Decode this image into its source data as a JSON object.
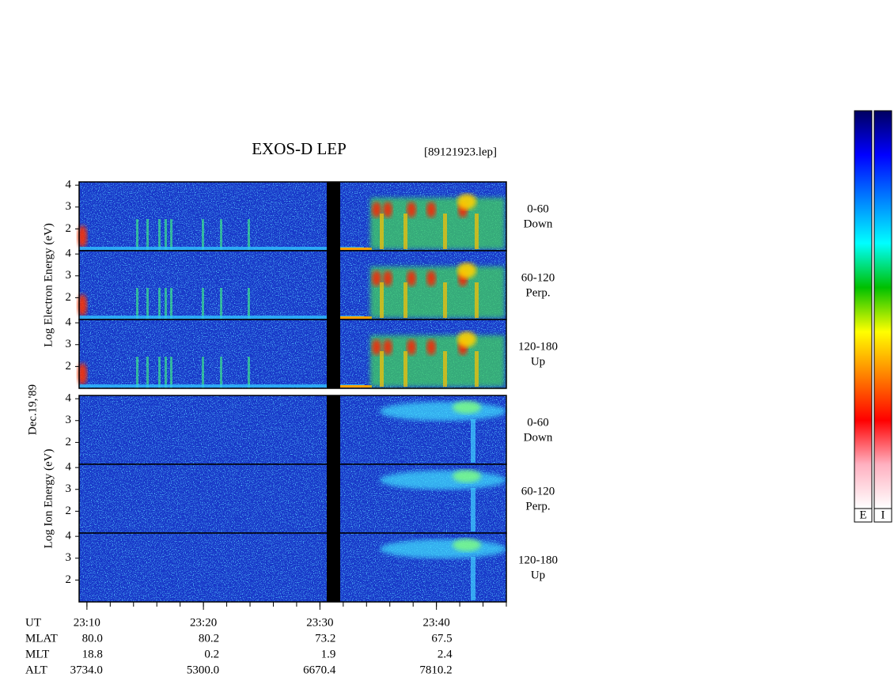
{
  "chart_data": {
    "type": "spectrogram",
    "title": "EXOS-D LEP",
    "file": "[89121923.lep]",
    "date": "Dec.19,'89",
    "xlim": [
      9.33,
      46
    ],
    "xticks": [
      {
        "value": 10,
        "label": "23:10"
      },
      {
        "value": 20,
        "label": "23:20"
      },
      {
        "value": 30,
        "label": "23:30"
      },
      {
        "value": 40,
        "label": "23:40"
      }
    ],
    "ylim": [
      1,
      4.15
    ],
    "yticks": [
      2,
      3,
      4
    ],
    "groups": [
      {
        "ylabel": "Log Electron Energy (eV)",
        "panels": [
          {
            "angle": "0-60",
            "direction": "Down"
          },
          {
            "angle": "60-120",
            "direction": "Perp."
          },
          {
            "angle": "120-180",
            "direction": "Up"
          }
        ]
      },
      {
        "ylabel": "Log Ion Energy (eV)",
        "panels": [
          {
            "angle": "0-60",
            "direction": "Down"
          },
          {
            "angle": "60-120",
            "direction": "Perp."
          },
          {
            "angle": "120-180",
            "direction": "Up"
          }
        ]
      }
    ],
    "orbit": {
      "labels": [
        "UT",
        "MLAT",
        "MLT",
        "ALT"
      ],
      "rows": [
        [
          "80.0",
          "80.2",
          "73.2",
          "67.5"
        ],
        [
          "18.8",
          "0.2",
          "1.9",
          "2.4"
        ],
        [
          "3734.0",
          "5300.0",
          "6670.4",
          "7810.2"
        ]
      ]
    },
    "colorbars": [
      "E",
      "I"
    ],
    "colorscale": [
      "#ffffff",
      "#ffb0c0",
      "#ff0000",
      "#ff8000",
      "#ffff00",
      "#00c000",
      "#00ffff",
      "#0080ff",
      "#0000ff",
      "#000060"
    ]
  }
}
